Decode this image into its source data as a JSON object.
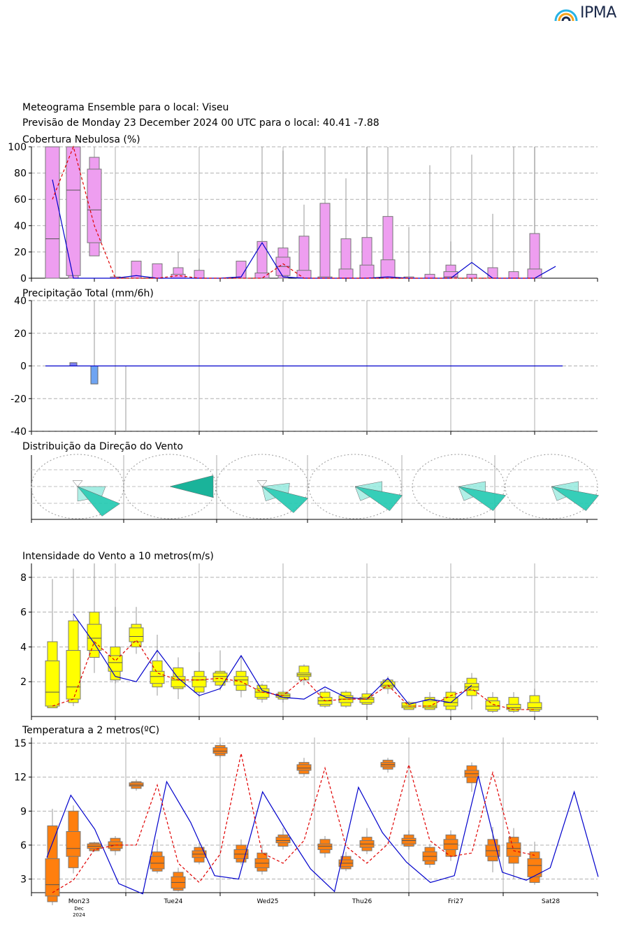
{
  "logo": {
    "text": "IPMA"
  },
  "header": {
    "title": "Meteograma Ensemble para o local: Viseu",
    "subtitle": "Previsão de Monday 23 December 2024 00 UTC para o local: 40.41 -7.88"
  },
  "colors": {
    "cloud": "#ee9ef0",
    "precip_pos": "#7e80f0",
    "precip_neg": "#6fa4f2",
    "wind_box": "#ffff00",
    "temp_box": "#ff7f0e",
    "control": "#0000cc",
    "median": "#e00000",
    "wind_rose": "#20c9b0"
  },
  "chart_data": [
    {
      "type": "box",
      "title": "Cobertura Nebulosa (%)",
      "ylim": [
        0,
        100
      ],
      "yticks": [
        0,
        20,
        40,
        60,
        80,
        100
      ],
      "step_hours": 6,
      "boxes": [
        [
          0,
          0,
          30,
          100,
          100
        ],
        [
          0,
          2,
          67,
          100,
          100
        ],
        [
          17,
          27,
          52,
          83,
          92
        ],
        [
          0,
          0,
          0,
          0,
          1
        ],
        [
          0,
          0,
          0,
          0,
          13
        ],
        [
          0,
          0,
          0,
          0,
          11
        ],
        [
          0,
          0,
          0,
          3,
          8
        ],
        [
          0,
          0,
          0,
          0,
          6
        ],
        [
          0,
          0,
          0,
          0,
          0
        ],
        [
          0,
          0,
          0,
          0,
          13
        ],
        [
          0,
          0,
          0,
          4,
          28
        ],
        [
          0,
          2,
          9,
          16,
          23
        ],
        [
          0,
          0,
          0,
          6,
          32
        ],
        [
          0,
          0,
          0,
          1,
          57
        ],
        [
          0,
          0,
          0,
          7,
          30
        ],
        [
          0,
          0,
          0,
          10,
          31
        ],
        [
          0,
          0,
          0,
          14,
          47
        ],
        [
          0,
          0,
          0,
          0,
          1
        ],
        [
          0,
          0,
          0,
          0,
          3
        ],
        [
          0,
          0,
          1,
          5,
          10
        ],
        [
          0,
          0,
          0,
          0,
          3
        ],
        [
          0,
          0,
          0,
          0,
          8
        ],
        [
          0,
          0,
          0,
          0,
          5
        ],
        [
          0,
          0,
          0,
          7,
          34
        ]
      ],
      "whisker_max": [
        100,
        100,
        100,
        2,
        13,
        11,
        20,
        15,
        0,
        13,
        100,
        97,
        56,
        100,
        76,
        100,
        100,
        39,
        86,
        28,
        94,
        49,
        100,
        100
      ],
      "control_x": [
        0,
        1,
        2,
        3,
        4,
        5,
        6,
        7,
        8,
        9,
        10,
        11,
        12,
        13,
        14,
        15,
        16,
        17,
        18,
        19,
        20,
        21,
        22,
        23,
        24
      ],
      "control": [
        75,
        0,
        0,
        0,
        2,
        0,
        0,
        0,
        0,
        1,
        27,
        1,
        0,
        0,
        0,
        0,
        1,
        0,
        0,
        0,
        12,
        0,
        0,
        0,
        9
      ],
      "median_line": [
        60,
        100,
        40,
        0,
        0,
        0,
        2,
        0,
        0,
        0,
        0,
        11,
        0,
        0,
        0,
        0,
        0,
        0,
        0,
        0,
        0,
        0,
        0,
        0
      ]
    },
    {
      "type": "box",
      "title": "Precipitação Total (mm/6h)",
      "ylim": [
        -40,
        40
      ],
      "yticks": [
        -40,
        -20,
        0,
        20,
        40
      ],
      "bars": [
        0,
        2,
        -11,
        0,
        0,
        0,
        0,
        0,
        0,
        0,
        0,
        0,
        0,
        0,
        0,
        0,
        0,
        0,
        0,
        0,
        0,
        0,
        0,
        0,
        0
      ],
      "whisker_top": [
        0,
        40,
        0
      ],
      "whisker_bottom": [
        0,
        0,
        -40
      ]
    },
    {
      "type": "wind_rose",
      "title": "Distribuição da Direção do Vento",
      "days": [
        {
          "dominant_deg": 135,
          "spread": "wide"
        },
        {
          "dominant_deg": 90,
          "spread": "narrow"
        },
        {
          "dominant_deg": 125,
          "spread": "wide"
        },
        {
          "dominant_deg": 120,
          "spread": "medium"
        },
        {
          "dominant_deg": 120,
          "spread": "medium"
        },
        {
          "dominant_deg": 120,
          "spread": "medium"
        }
      ]
    },
    {
      "type": "box",
      "title": "Intensidade do Vento a 10 metros(m/s)",
      "ylim": [
        0,
        8.8
      ],
      "yticks": [
        2,
        4,
        6,
        8
      ],
      "boxes": [
        [
          0.5,
          0.6,
          1.4,
          3.2,
          4.3
        ],
        [
          0.8,
          1.0,
          1.7,
          3.8,
          5.5
        ],
        [
          3.4,
          3.8,
          4.5,
          5.3,
          6.0
        ],
        [
          2.1,
          2.6,
          3.1,
          3.5,
          4.0
        ],
        [
          4.0,
          4.3,
          4.6,
          5.1,
          5.3
        ],
        [
          1.7,
          1.9,
          2.3,
          2.6,
          3.2
        ],
        [
          1.6,
          1.7,
          2.1,
          2.3,
          2.8
        ],
        [
          1.4,
          1.7,
          2.1,
          2.3,
          2.6
        ],
        [
          1.8,
          2.0,
          2.3,
          2.5,
          2.6
        ],
        [
          1.5,
          1.8,
          2.1,
          2.3,
          2.6
        ],
        [
          1.0,
          1.1,
          1.4,
          1.6,
          1.8
        ],
        [
          1.0,
          1.1,
          1.2,
          1.3,
          1.4
        ],
        [
          2.1,
          2.3,
          2.4,
          2.5,
          2.9
        ],
        [
          0.6,
          0.7,
          0.9,
          1.1,
          1.4
        ],
        [
          0.6,
          0.8,
          1.0,
          1.2,
          1.4
        ],
        [
          0.7,
          0.8,
          1.0,
          1.1,
          1.3
        ],
        [
          1.6,
          1.7,
          1.8,
          2.0,
          2.1
        ],
        [
          0.4,
          0.5,
          0.6,
          0.8,
          0.8
        ],
        [
          0.4,
          0.5,
          0.6,
          0.9,
          1.1
        ],
        [
          0.4,
          0.6,
          0.8,
          1.1,
          1.4
        ],
        [
          1.2,
          1.5,
          1.7,
          1.9,
          2.2
        ],
        [
          0.3,
          0.4,
          0.6,
          0.9,
          1.1
        ],
        [
          0.3,
          0.4,
          0.5,
          0.7,
          1.1
        ],
        [
          0.3,
          0.4,
          0.5,
          0.8,
          1.2
        ]
      ],
      "whisker_max": [
        7.9,
        8.5,
        8.8,
        6.3,
        6.3,
        4.7,
        3.4,
        3.7,
        3.8,
        3.5,
        1.9,
        1.5,
        3.0,
        1.6,
        1.5,
        1.5,
        2.3,
        0.9,
        1.4,
        1.8,
        2.5,
        1.4,
        1.4,
        1.6
      ],
      "whisker_min": [
        0.5,
        0.6,
        2.5,
        1.9,
        3.6,
        1.2,
        1.0,
        1.1,
        1.5,
        1.1,
        0.8,
        0.8,
        1.8,
        0.5,
        0.5,
        0.4,
        1.3,
        0.4,
        0.4,
        0.3,
        0.4,
        0.2,
        0.2,
        0.3
      ],
      "control": [
        5.9,
        4.2,
        2.3,
        2.0,
        3.8,
        2.2,
        1.2,
        1.6,
        3.5,
        1.5,
        1.1,
        1.0,
        1.7,
        1.1,
        1.0,
        2.2,
        0.7,
        1.0,
        0.8,
        1.8
      ],
      "control_idx": [
        1,
        2,
        3,
        4,
        5,
        6,
        7,
        8,
        9,
        10,
        11,
        12,
        13,
        14,
        15,
        16,
        17,
        18,
        19,
        20
      ],
      "median_line": [
        0.6,
        1.0,
        4.3,
        3.2,
        4.4,
        2.5,
        2.1,
        2.1,
        2.2,
        2.0,
        1.4,
        1.2,
        2.2,
        0.9,
        1.0,
        1.0,
        1.8,
        0.6,
        0.6,
        1.2,
        1.6,
        0.7,
        0.4,
        0.4
      ]
    },
    {
      "type": "box",
      "title": "Temperatura a 2 metros(ºC)",
      "ylim": [
        1.8,
        15.5
      ],
      "yticks": [
        3,
        6,
        9,
        12,
        15
      ],
      "boxes": [
        [
          1.0,
          1.5,
          2.5,
          4.8,
          7.7
        ],
        [
          4.0,
          5.0,
          5.7,
          7.2,
          9.0
        ],
        [
          5.5,
          5.7,
          5.9,
          6.1,
          6.2
        ],
        [
          5.5,
          5.7,
          6.0,
          6.3,
          6.6
        ],
        [
          11.0,
          11.2,
          11.3,
          11.5,
          11.6
        ],
        [
          3.7,
          3.9,
          4.4,
          5.0,
          5.4
        ],
        [
          2.0,
          2.2,
          2.7,
          3.2,
          3.6
        ],
        [
          4.5,
          4.9,
          5.2,
          5.5,
          5.8
        ],
        [
          13.9,
          14.1,
          14.3,
          14.6,
          14.8
        ],
        [
          4.5,
          4.8,
          5.2,
          5.6,
          6.0
        ],
        [
          3.7,
          4.0,
          4.4,
          4.8,
          5.3
        ],
        [
          5.9,
          6.2,
          6.4,
          6.7,
          6.9
        ],
        [
          12.3,
          12.6,
          12.8,
          13.1,
          13.3
        ],
        [
          5.3,
          5.6,
          5.9,
          6.1,
          6.5
        ],
        [
          3.9,
          4.1,
          4.4,
          4.7,
          5.0
        ],
        [
          5.5,
          5.8,
          6.1,
          6.4,
          6.7
        ],
        [
          12.7,
          12.9,
          13.1,
          13.3,
          13.5
        ],
        [
          5.9,
          6.1,
          6.4,
          6.6,
          6.9
        ],
        [
          4.3,
          4.6,
          5.0,
          5.4,
          5.8
        ],
        [
          5.0,
          5.6,
          6.1,
          6.5,
          6.9
        ],
        [
          11.5,
          12.0,
          12.3,
          12.6,
          13.0
        ],
        [
          4.6,
          5.0,
          5.5,
          6.0,
          6.5
        ],
        [
          4.4,
          5.0,
          5.7,
          6.2,
          6.7
        ],
        [
          2.7,
          3.2,
          4.2,
          4.8,
          5.4
        ]
      ],
      "whisker_max": [
        9.2,
        9.5,
        6.3,
        6.8,
        11.8,
        6.5,
        4.0,
        6.2,
        15.0,
        6.5,
        6.0,
        7.5,
        13.7,
        6.8,
        5.4,
        7.5,
        13.7,
        7.3,
        6.1,
        7.3,
        13.3,
        7.6,
        7.5,
        6.3
      ],
      "whisker_min": [
        0.7,
        3.5,
        5.4,
        5.1,
        10.8,
        3.5,
        1.9,
        4.3,
        13.7,
        4.3,
        3.4,
        5.6,
        12.0,
        4.9,
        3.7,
        5.2,
        12.4,
        5.6,
        4.0,
        4.6,
        10.7,
        3.6,
        3.0,
        2.5
      ],
      "control": [
        4.9,
        10.4,
        7.4,
        2.6,
        1.7,
        11.6,
        8.0,
        3.3,
        3.0,
        10.7,
        7.2,
        3.9,
        1.9,
        11.1,
        7.1,
        4.5,
        2.7,
        3.3,
        12.1,
        3.6,
        2.9,
        4.0,
        10.7,
        3.2
      ],
      "control_idx": [
        1,
        2,
        3,
        4,
        5,
        6,
        7,
        8,
        9,
        10,
        11,
        12,
        13,
        14,
        15,
        16,
        17,
        18,
        19,
        20,
        21,
        22,
        23,
        24
      ],
      "control_tail_x": [
        21.6,
        23.2
      ],
      "control_tail": [
        1.2,
        3.1
      ],
      "median_line": [
        1.8,
        2.9,
        5.6,
        6.0,
        6.0,
        11.3,
        4.4,
        2.7,
        5.2,
        14.1,
        5.3,
        4.4,
        6.4,
        12.8,
        5.9,
        4.4,
        6.1,
        13.1,
        6.4,
        5.0,
        5.3,
        12.4,
        5.5,
        5.1
      ],
      "xticks": [
        "Mon23",
        "Tue24",
        "Wed25",
        "Thu26",
        "Fri27",
        "Sat28"
      ],
      "xtick_sub": [
        "Dec",
        "2024"
      ]
    }
  ]
}
